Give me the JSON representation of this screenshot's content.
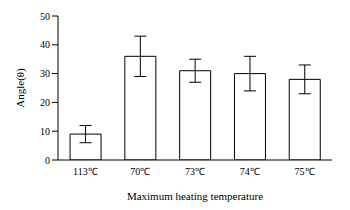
{
  "chart_data": {
    "type": "bar",
    "categories": [
      "113℃",
      "70℃",
      "73℃",
      "74℃",
      "75℃"
    ],
    "values": [
      9,
      36,
      31,
      30,
      28
    ],
    "errors": [
      3,
      7,
      4,
      6,
      5
    ],
    "color": "#ffffff",
    "xlabel": "Maximum heating temperature",
    "ylabel": "Angle(θ)",
    "ylim": [
      0,
      50
    ],
    "yticks": [
      0,
      10,
      20,
      30,
      40,
      50
    ],
    "grid": false
  }
}
